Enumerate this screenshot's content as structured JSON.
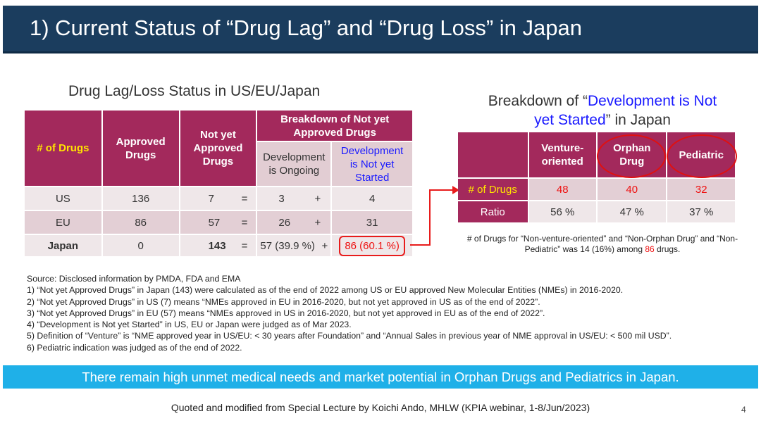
{
  "title": "1) Current Status of “Drug Lag” and “Drug Loss” in Japan",
  "left_table": {
    "title": "Drug Lag/Loss Status in US/EU/Japan",
    "headers": {
      "drugs": "# of Drugs",
      "approved": "Approved Drugs",
      "not_yet": "Not yet Approved Drugs",
      "breakdown": "Breakdown of Not yet Approved Drugs",
      "ongoing": "Development is Ongoing",
      "not_started": "Development is Not yet Started"
    },
    "rows": [
      {
        "region": "US",
        "approved": "136",
        "not_yet": "7",
        "eq": "=",
        "ongoing": "3",
        "plus": "+",
        "not_started": "4"
      },
      {
        "region": "EU",
        "approved": "86",
        "not_yet": "57",
        "eq": "=",
        "ongoing": "26",
        "plus": "+",
        "not_started": "31"
      },
      {
        "region": "Japan",
        "approved": "0",
        "not_yet": "143",
        "eq": "=",
        "ongoing": "57 (39.9 %)",
        "plus": "+",
        "not_started": "86 (60.1 %)"
      }
    ]
  },
  "right_table": {
    "title_pre": "Breakdown of “",
    "title_blue": "Development is Not yet Started",
    "title_post": "” in Japan",
    "headers": [
      "Venture-oriented",
      "Orphan Drug",
      "Pediatric"
    ],
    "rows": [
      {
        "label": "# of Drugs",
        "values": [
          "48",
          "40",
          "32"
        ]
      },
      {
        "label": "Ratio",
        "values": [
          "56 %",
          "47 %",
          "37 %"
        ]
      }
    ],
    "note_pre": "# of Drugs for “Non-venture-oriented” and “Non-Orphan Drug” and “Non-Pediatric” was 14 (16%) among ",
    "note_red": "86",
    "note_post": " drugs."
  },
  "notes": [
    "Source:  Disclosed information by PMDA, FDA and EMA",
    "1)  “Not yet Approved Drugs” in Japan (143) were calculated as of the end of 2022 among US or EU approved New Molecular Entities (NMEs) in 2016-2020.",
    "2)  “Not yet Approved Drugs” in US (7) means “NMEs approved in EU in 2016-2020, but not yet approved in US as of the end of 2022”.",
    "3)  “Not yet Approved Drugs” in EU (57) means “NMEs approved in US in 2016-2020, but not yet approved in EU as of the end of 2022”.",
    "4)  “Development is Not yet Started” in US, EU or Japan were judged as of Mar 2023.",
    "5)  Definition of “Venture” is “NME approved year in US/EU: < 30 years after Foundation” and “Annual Sales in previous year of NME approval in US/EU: < 500 mil USD”.",
    "6)  Pediatric indication was judged as of the end of 2022."
  ],
  "banner": "There remain high unmet medical needs and market potential in Orphan Drugs and Pediatrics in Japan.",
  "footer": "Quoted and modified from Special Lecture by Koichi Ando, MHLW (KPIA webinar, 1-8/Jun/2023)",
  "page_number": "4",
  "colors": {
    "title_bar": "#1b3d5e",
    "table_header": "#a3295c",
    "highlight": "#ee1111",
    "banner": "#1fb0e8"
  }
}
